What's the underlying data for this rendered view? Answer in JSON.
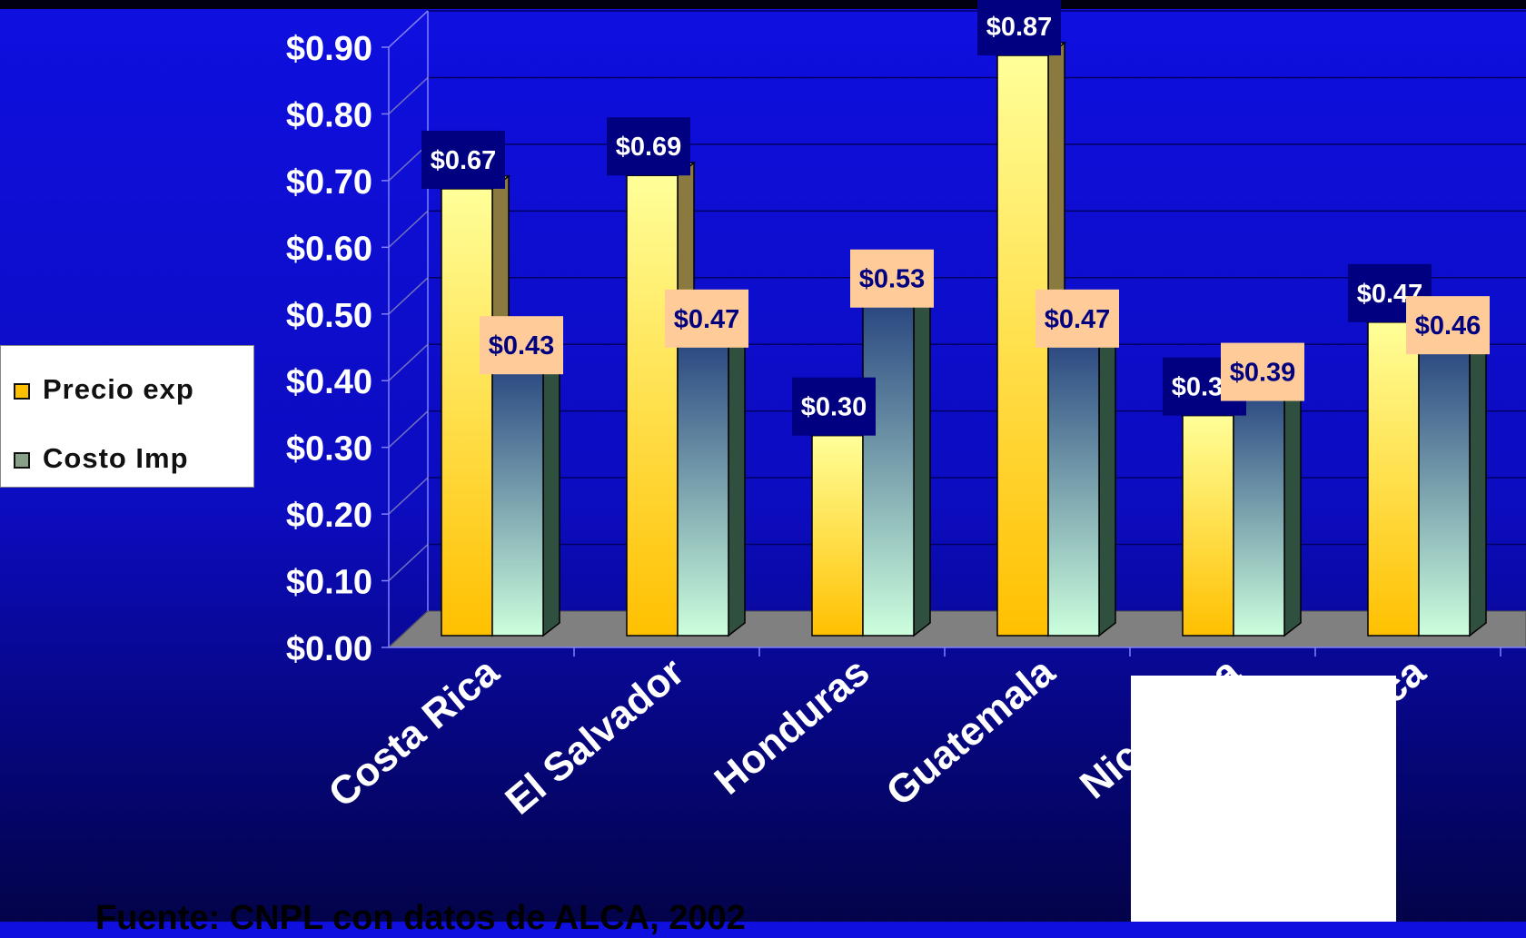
{
  "chart_data": {
    "type": "bar",
    "categories": [
      "Costa Rica",
      "El Salvador",
      "Honduras",
      "Guatemala",
      "Nicaragua",
      "Centroamérica"
    ],
    "series": [
      {
        "name": "Precio exp",
        "values": [
          0.67,
          0.69,
          0.3,
          0.87,
          0.33,
          0.47
        ],
        "labels": [
          "$0.67",
          "$0.69",
          "$0.30",
          "$0.87",
          "$0.33",
          "$0.47"
        ]
      },
      {
        "name": "Costo Imp",
        "values": [
          0.43,
          0.47,
          0.53,
          0.47,
          0.39,
          0.46
        ],
        "labels": [
          "$0.43",
          "$0.47",
          "$0.53",
          "$0.47",
          "$0.39",
          "$0.46"
        ]
      }
    ],
    "yticks": [
      "$0.00",
      "$0.10",
      "$0.20",
      "$0.30",
      "$0.40",
      "$0.50",
      "$0.60",
      "$0.70",
      "$0.80",
      "$0.90"
    ],
    "ylim": [
      0,
      0.9
    ],
    "legend_position": "left",
    "grid": true,
    "colors": {
      "precio_top": "#ffff99",
      "precio_bottom": "#ffc000",
      "costo_top": "#1f3b7a",
      "costo_bottom": "#ccffdd",
      "precio_label_bg": "#000080",
      "costo_label_bg": "#ffcc99",
      "gridline": "#000060"
    }
  },
  "legend": {
    "precio": "Precio exp",
    "costo": "Costo Imp"
  },
  "source": "Fuente: CNPL con datos de ALCA, 2002",
  "overlay_box_label": "Centroamérica"
}
